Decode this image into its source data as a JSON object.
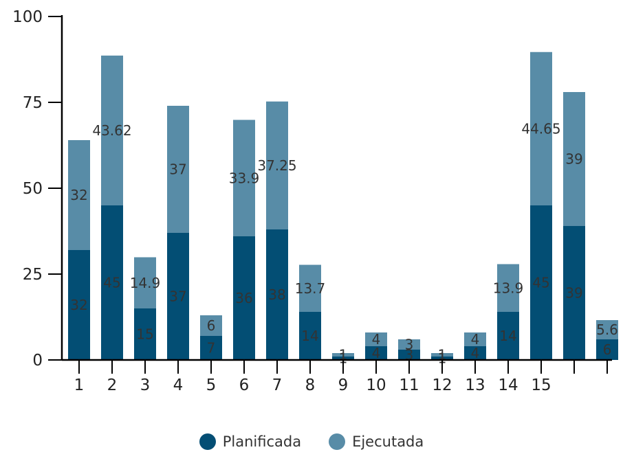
{
  "chart_data": {
    "type": "bar",
    "stacked": true,
    "categories": [
      "1",
      "2",
      "3",
      "4",
      "5",
      "6",
      "7",
      "8",
      "9",
      "10",
      "11",
      "12",
      "13",
      "14",
      "15",
      "",
      ""
    ],
    "series": [
      {
        "name": "Planificada",
        "color": "#034e74",
        "values": [
          32,
          45,
          15,
          37,
          7,
          36,
          38,
          14,
          1,
          4,
          3,
          1,
          4,
          14,
          45,
          39,
          6
        ]
      },
      {
        "name": "Ejecutada",
        "color": "#588ca7",
        "values": [
          32,
          43.62,
          14.9,
          37,
          6,
          33.9,
          37.25,
          13.7,
          1,
          4,
          3,
          1,
          4,
          13.9,
          44.65,
          39,
          5.6
        ]
      }
    ],
    "ylim": [
      0,
      100
    ],
    "yticks": [
      0,
      25,
      50,
      75,
      100
    ],
    "legend_position": "bottom-center",
    "grid": false
  },
  "legend": {
    "items": [
      {
        "label": "Planificada",
        "color": "#034e74"
      },
      {
        "label": "Ejecutada",
        "color": "#588ca7"
      }
    ]
  }
}
